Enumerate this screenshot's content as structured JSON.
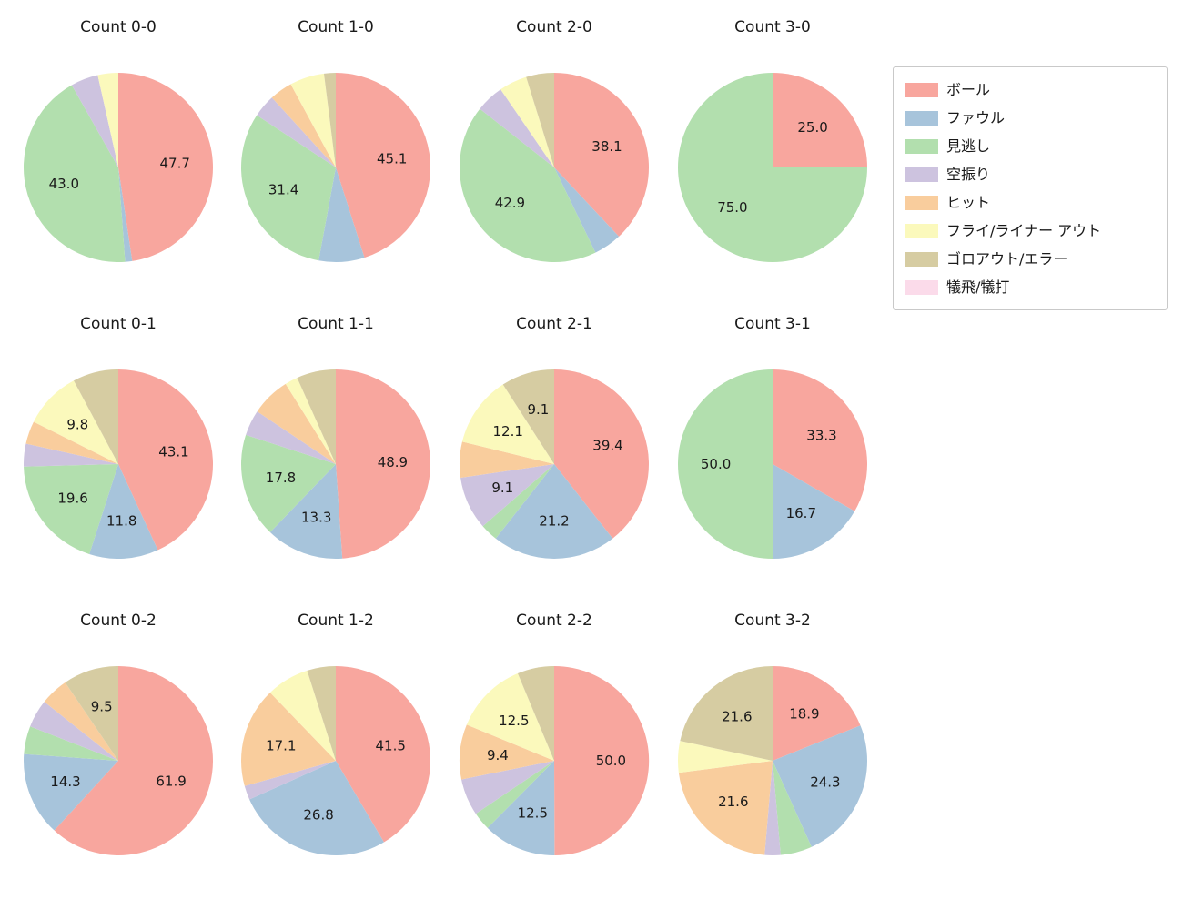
{
  "figure": {
    "background": "#ffffff"
  },
  "legend": {
    "items": [
      {
        "label": "ボール",
        "color": "#f8a69e"
      },
      {
        "label": "ファウル",
        "color": "#a7c4db"
      },
      {
        "label": "見逃し",
        "color": "#b2dfae"
      },
      {
        "label": "空振り",
        "color": "#cdc3df"
      },
      {
        "label": "ヒット",
        "color": "#f9cd9d"
      },
      {
        "label": "フライ/ライナー アウト",
        "color": "#fbf9bc"
      },
      {
        "label": "ゴロアウト/エラー",
        "color": "#d6cca2"
      },
      {
        "label": "犠飛/犠打",
        "color": "#fbdbea"
      }
    ]
  },
  "chart_data": {
    "type": "pie",
    "layout": "grid-3x4",
    "start_angle": "top-clockwise",
    "series_labels": [
      "ボール",
      "ファウル",
      "見逃し",
      "空振り",
      "ヒット",
      "フライ/ライナー アウト",
      "ゴロアウト/エラー",
      "犠飛/犠打"
    ],
    "charts": [
      {
        "title": "Count 0-0",
        "values": [
          47.7,
          1.2,
          43.0,
          4.7,
          0,
          3.5,
          0,
          0
        ],
        "labels": {
          "0": "47.7",
          "2": "43.0"
        }
      },
      {
        "title": "Count 1-0",
        "values": [
          45.1,
          7.8,
          31.4,
          3.9,
          3.9,
          5.9,
          2.0,
          0
        ],
        "labels": {
          "0": "45.1",
          "2": "31.4"
        }
      },
      {
        "title": "Count 2-0",
        "values": [
          38.1,
          4.8,
          42.9,
          4.8,
          0,
          4.8,
          4.8,
          0
        ],
        "labels": {
          "0": "38.1",
          "2": "42.9"
        }
      },
      {
        "title": "Count 3-0",
        "values": [
          25.0,
          0,
          75.0,
          0,
          0,
          0,
          0,
          0
        ],
        "labels": {
          "0": "25.0",
          "2": "75.0"
        }
      },
      {
        "title": "Count 0-1",
        "values": [
          43.1,
          11.8,
          19.6,
          3.9,
          3.9,
          9.8,
          7.8,
          0
        ],
        "labels": {
          "0": "43.1",
          "1": "11.8",
          "2": "19.6",
          "5": "9.8"
        }
      },
      {
        "title": "Count 1-1",
        "values": [
          48.9,
          13.3,
          17.8,
          4.4,
          6.7,
          2.2,
          6.7,
          0
        ],
        "labels": {
          "0": "48.9",
          "1": "13.3",
          "2": "17.8"
        }
      },
      {
        "title": "Count 2-1",
        "values": [
          39.4,
          21.2,
          3.0,
          9.1,
          6.1,
          12.1,
          9.1,
          0
        ],
        "labels": {
          "0": "39.4",
          "1": "21.2",
          "3": "9.1",
          "5": "12.1",
          "6": "9.1"
        }
      },
      {
        "title": "Count 3-1",
        "values": [
          33.3,
          16.7,
          50.0,
          0,
          0,
          0,
          0,
          0
        ],
        "labels": {
          "0": "33.3",
          "1": "16.7",
          "2": "50.0"
        }
      },
      {
        "title": "Count 0-2",
        "values": [
          61.9,
          14.3,
          4.8,
          4.8,
          4.8,
          0,
          9.5,
          0
        ],
        "labels": {
          "0": "61.9",
          "1": "14.3",
          "6": "9.5"
        }
      },
      {
        "title": "Count 1-2",
        "values": [
          41.5,
          26.8,
          0,
          2.4,
          17.1,
          7.3,
          4.9,
          0
        ],
        "labels": {
          "0": "41.5",
          "1": "26.8",
          "4": "17.1"
        }
      },
      {
        "title": "Count 2-2",
        "values": [
          50.0,
          12.5,
          3.1,
          6.3,
          9.4,
          12.5,
          6.3,
          0
        ],
        "labels": {
          "0": "50.0",
          "1": "12.5",
          "4": "9.4",
          "5": "12.5"
        }
      },
      {
        "title": "Count 3-2",
        "values": [
          18.9,
          24.3,
          5.4,
          2.7,
          21.6,
          5.4,
          21.6,
          0
        ],
        "labels": {
          "0": "18.9",
          "1": "24.3",
          "4": "21.6",
          "6": "21.6"
        }
      }
    ]
  }
}
